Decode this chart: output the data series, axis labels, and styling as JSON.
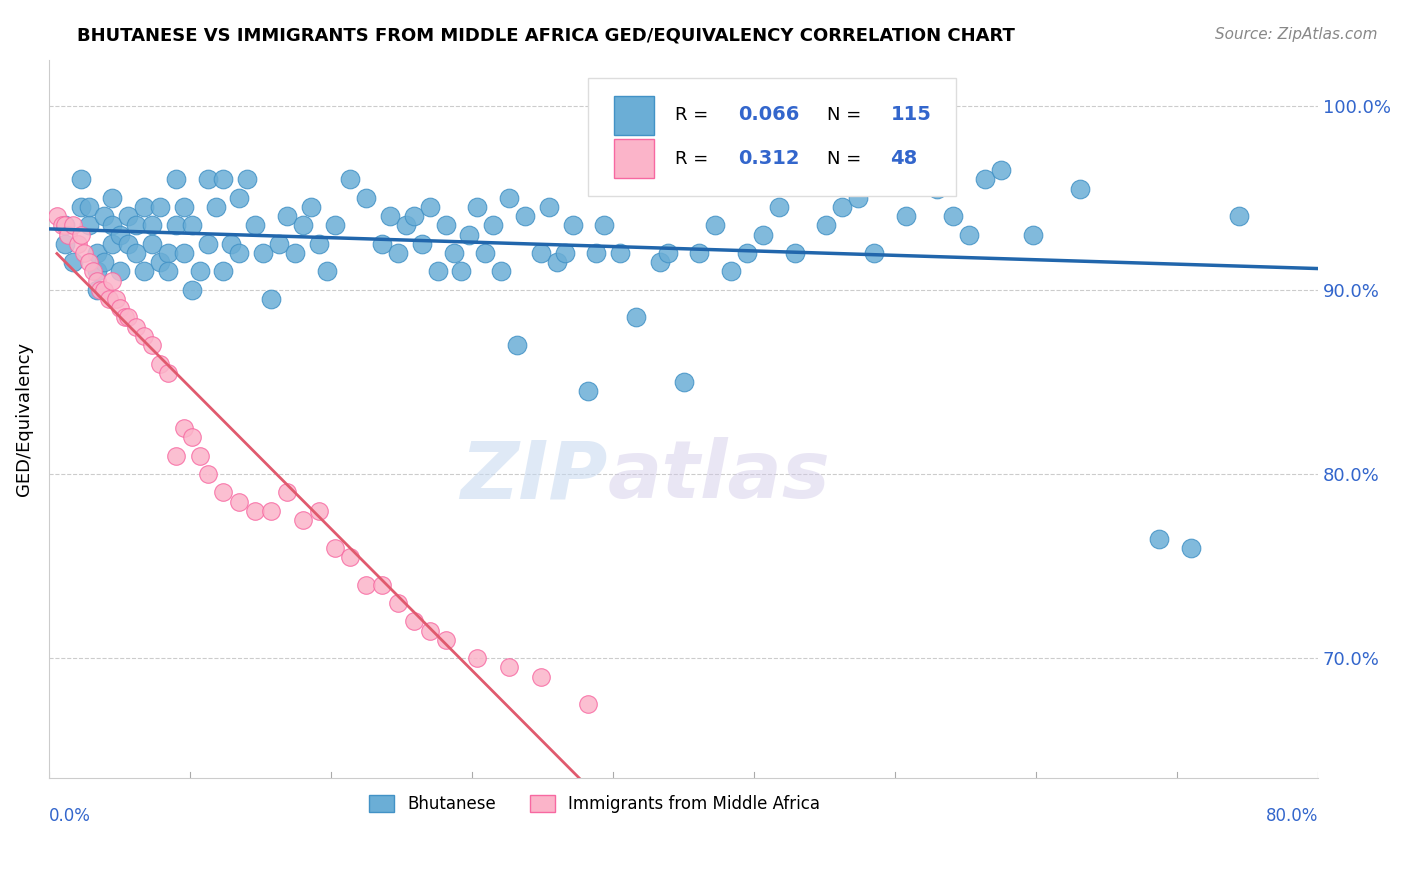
{
  "title": "BHUTANESE VS IMMIGRANTS FROM MIDDLE AFRICA GED/EQUIVALENCY CORRELATION CHART",
  "source": "Source: ZipAtlas.com",
  "ylabel": "GED/Equivalency",
  "ytick_labels": [
    "70.0%",
    "80.0%",
    "90.0%",
    "100.0%"
  ],
  "ytick_values": [
    0.7,
    0.8,
    0.9,
    1.0
  ],
  "xlim": [
    0.0,
    0.8
  ],
  "ylim": [
    0.635,
    1.025
  ],
  "blue_color": "#6baed6",
  "blue_edge": "#4292c6",
  "pink_color": "#fbb4c9",
  "pink_edge": "#f768a1",
  "line_blue": "#2166ac",
  "line_pink": "#e05a6e",
  "watermark_zip": "ZIP",
  "watermark_atlas": "atlas",
  "blue_scatter_x": [
    0.01,
    0.01,
    0.015,
    0.02,
    0.02,
    0.025,
    0.025,
    0.03,
    0.03,
    0.03,
    0.035,
    0.035,
    0.04,
    0.04,
    0.04,
    0.045,
    0.045,
    0.05,
    0.05,
    0.055,
    0.055,
    0.06,
    0.06,
    0.065,
    0.065,
    0.07,
    0.07,
    0.075,
    0.075,
    0.08,
    0.08,
    0.085,
    0.085,
    0.09,
    0.09,
    0.095,
    0.1,
    0.1,
    0.105,
    0.11,
    0.11,
    0.115,
    0.12,
    0.12,
    0.125,
    0.13,
    0.135,
    0.14,
    0.145,
    0.15,
    0.155,
    0.16,
    0.165,
    0.17,
    0.175,
    0.18,
    0.19,
    0.2,
    0.21,
    0.215,
    0.22,
    0.225,
    0.23,
    0.235,
    0.24,
    0.245,
    0.25,
    0.255,
    0.26,
    0.265,
    0.27,
    0.275,
    0.28,
    0.285,
    0.29,
    0.295,
    0.3,
    0.31,
    0.315,
    0.32,
    0.325,
    0.33,
    0.34,
    0.345,
    0.35,
    0.36,
    0.37,
    0.385,
    0.39,
    0.4,
    0.41,
    0.42,
    0.43,
    0.44,
    0.45,
    0.46,
    0.47,
    0.48,
    0.49,
    0.5,
    0.51,
    0.52,
    0.53,
    0.54,
    0.55,
    0.56,
    0.57,
    0.58,
    0.59,
    0.6,
    0.62,
    0.65,
    0.7,
    0.72,
    0.75
  ],
  "blue_scatter_y": [
    0.925,
    0.935,
    0.915,
    0.945,
    0.96,
    0.935,
    0.945,
    0.92,
    0.91,
    0.9,
    0.915,
    0.94,
    0.925,
    0.935,
    0.95,
    0.91,
    0.93,
    0.925,
    0.94,
    0.92,
    0.935,
    0.91,
    0.945,
    0.925,
    0.935,
    0.915,
    0.945,
    0.92,
    0.91,
    0.935,
    0.96,
    0.92,
    0.945,
    0.9,
    0.935,
    0.91,
    0.96,
    0.925,
    0.945,
    0.96,
    0.91,
    0.925,
    0.95,
    0.92,
    0.96,
    0.935,
    0.92,
    0.895,
    0.925,
    0.94,
    0.92,
    0.935,
    0.945,
    0.925,
    0.91,
    0.935,
    0.96,
    0.95,
    0.925,
    0.94,
    0.92,
    0.935,
    0.94,
    0.925,
    0.945,
    0.91,
    0.935,
    0.92,
    0.91,
    0.93,
    0.945,
    0.92,
    0.935,
    0.91,
    0.95,
    0.87,
    0.94,
    0.92,
    0.945,
    0.915,
    0.92,
    0.935,
    0.845,
    0.92,
    0.935,
    0.92,
    0.885,
    0.915,
    0.92,
    0.85,
    0.92,
    0.935,
    0.91,
    0.92,
    0.93,
    0.945,
    0.92,
    0.96,
    0.935,
    0.945,
    0.95,
    0.92,
    0.96,
    0.94,
    0.96,
    0.955,
    0.94,
    0.93,
    0.96,
    0.965,
    0.93,
    0.955,
    0.765,
    0.76,
    0.94
  ],
  "pink_scatter_x": [
    0.005,
    0.008,
    0.01,
    0.012,
    0.015,
    0.018,
    0.02,
    0.022,
    0.025,
    0.028,
    0.03,
    0.032,
    0.035,
    0.038,
    0.04,
    0.042,
    0.045,
    0.048,
    0.05,
    0.055,
    0.06,
    0.065,
    0.07,
    0.075,
    0.08,
    0.085,
    0.09,
    0.095,
    0.1,
    0.11,
    0.12,
    0.13,
    0.14,
    0.15,
    0.16,
    0.17,
    0.18,
    0.19,
    0.2,
    0.21,
    0.22,
    0.23,
    0.24,
    0.25,
    0.27,
    0.29,
    0.31,
    0.34
  ],
  "pink_scatter_y": [
    0.94,
    0.935,
    0.935,
    0.93,
    0.935,
    0.925,
    0.93,
    0.92,
    0.915,
    0.91,
    0.905,
    0.9,
    0.9,
    0.895,
    0.905,
    0.895,
    0.89,
    0.885,
    0.885,
    0.88,
    0.875,
    0.87,
    0.86,
    0.855,
    0.81,
    0.825,
    0.82,
    0.81,
    0.8,
    0.79,
    0.785,
    0.78,
    0.78,
    0.79,
    0.775,
    0.78,
    0.76,
    0.755,
    0.74,
    0.74,
    0.73,
    0.72,
    0.715,
    0.71,
    0.7,
    0.695,
    0.69,
    0.675
  ]
}
